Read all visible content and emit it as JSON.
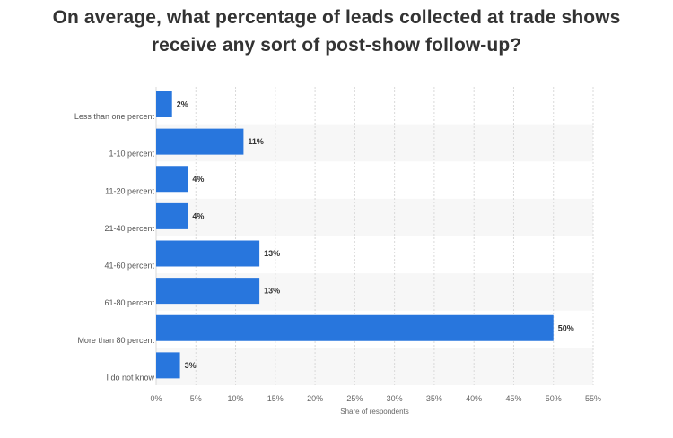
{
  "chart_data": {
    "type": "bar",
    "orientation": "horizontal",
    "title_lines": [
      "On average, what percentage of leads collected at trade shows",
      "receive any sort of post-show follow-up?"
    ],
    "categories": [
      "Less than one percent",
      "1-10 percent",
      "11-20 percent",
      "21-40 percent",
      "41-60 percent",
      "61-80 percent",
      "More than 80 percent",
      "I do not know"
    ],
    "values": [
      2,
      11,
      4,
      4,
      13,
      13,
      50,
      3
    ],
    "data_labels": [
      "2%",
      "11%",
      "4%",
      "4%",
      "13%",
      "13%",
      "50%",
      "3%"
    ],
    "x_ticks": [
      0,
      5,
      10,
      15,
      20,
      25,
      30,
      35,
      40,
      45,
      50,
      55
    ],
    "x_tick_labels": [
      "0%",
      "5%",
      "10%",
      "15%",
      "20%",
      "25%",
      "30%",
      "35%",
      "40%",
      "45%",
      "50%",
      "55%"
    ],
    "xlim": [
      0,
      55
    ],
    "xlabel": "Share of respondents",
    "ylabel": "",
    "grid": true,
    "legend": "none",
    "colors": {
      "bar": "#2876dd",
      "band": "#f7f7f7",
      "grid": "#d9d9d9"
    }
  }
}
